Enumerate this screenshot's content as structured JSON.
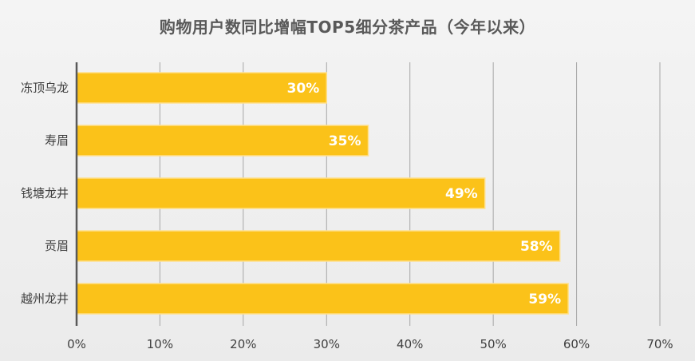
{
  "chart_data": {
    "type": "bar",
    "orientation": "horizontal",
    "title": "购物用户数同比增幅TOP5细分茶产品（今年以来）",
    "categories": [
      "冻顶乌龙",
      "寿眉",
      "钱塘龙井",
      "贡眉",
      "越州龙井"
    ],
    "values": [
      30,
      35,
      49,
      58,
      59
    ],
    "data_labels": [
      "30%",
      "35%",
      "49%",
      "58%",
      "59%"
    ],
    "x_ticks": [
      "0%",
      "10%",
      "20%",
      "30%",
      "40%",
      "50%",
      "60%",
      "70%"
    ],
    "xlim": [
      0,
      70
    ],
    "xlabel": "",
    "ylabel": "",
    "grid": "vertical",
    "legend": "none",
    "bar_color": "#FBC219",
    "bar_border_color": "#FFE08A",
    "grid_color": "#A6A6A6",
    "axis_color": "#595959"
  }
}
